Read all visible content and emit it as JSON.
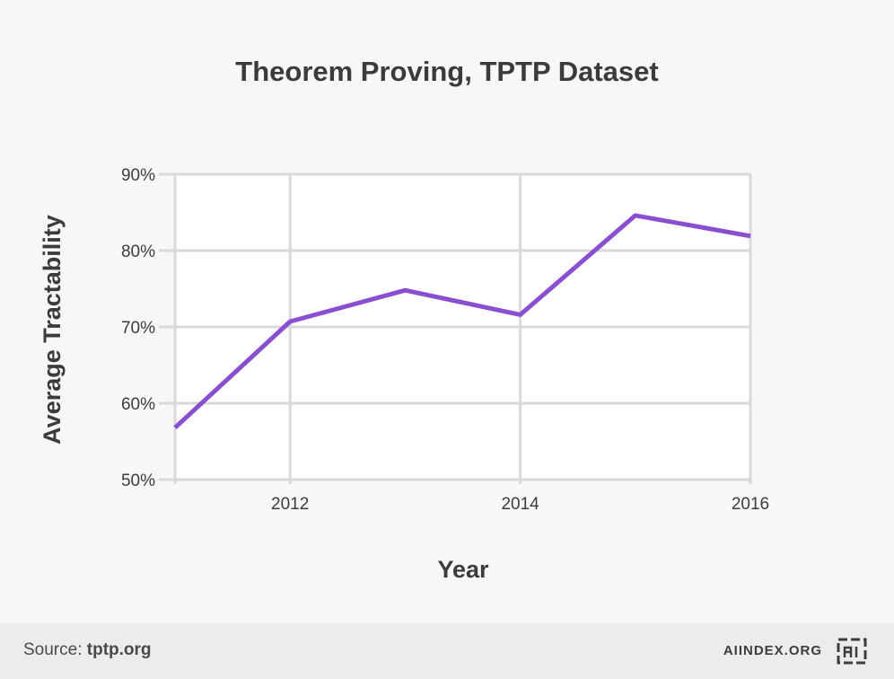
{
  "chart_data": {
    "type": "line",
    "title": "Theorem Proving, TPTP Dataset",
    "xlabel": "Year",
    "ylabel": "Average Tractability",
    "xlim": [
      2011,
      2016
    ],
    "ylim": [
      50,
      90
    ],
    "x_ticks": [
      2012,
      2014,
      2016
    ],
    "y_ticks": [
      "50%",
      "60%",
      "70%",
      "80%",
      "90%"
    ],
    "grid": true,
    "series": [
      {
        "color": "#8a4fd0",
        "x": [
          2011,
          2012,
          2013,
          2014,
          2015,
          2016
        ],
        "y": [
          56.8,
          70.7,
          74.8,
          71.6,
          84.6,
          81.9
        ]
      }
    ]
  },
  "footer": {
    "source_label": "Source:",
    "source_value": "tptp.org",
    "brand": "AIINDEX.ORG",
    "logo_icon": "ai-index-logo-icon"
  }
}
